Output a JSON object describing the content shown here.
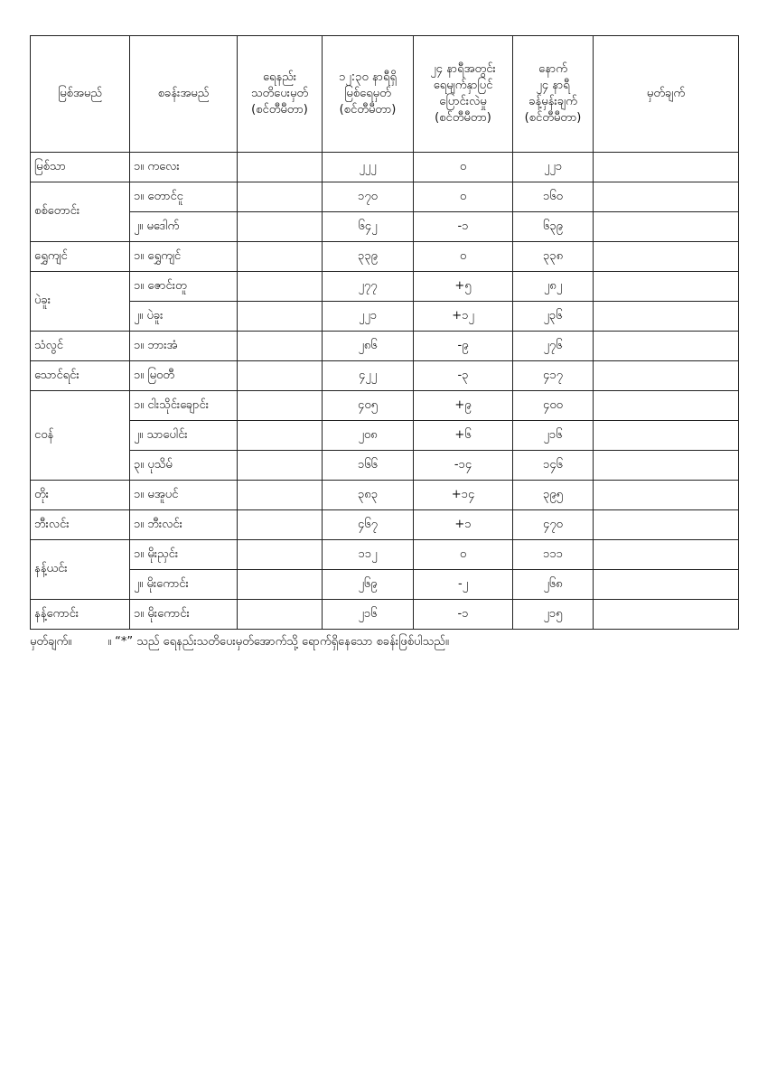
{
  "headers": [
    [
      "မြစ်အမည်"
    ],
    [
      "စခန်းအမည်"
    ],
    [
      "ရေနည်း",
      "သတိပေးမှတ်",
      "(စင်တီမီတာ)"
    ],
    [
      "၁၂:၃၀ နာရီရှိ",
      "မြစ်ရေမှတ်",
      "(စင်တီမီတာ)"
    ],
    [
      "၂၄ နာရီအတွင်း",
      "ရေမျက်နှာပြင်",
      "ပြောင်းလဲမှု",
      "(စင်တီမီတာ)"
    ],
    [
      "နောက်",
      "၂၄ နာရီ",
      "ခန့်မှန်းချက်",
      "(စင်တီမီတာ)"
    ],
    [
      "မှတ်ချက်"
    ]
  ],
  "rivers": [
    {
      "river": "မြစ်သာ",
      "stations": [
        {
          "name": "၁။ ကလေး",
          "warning": "",
          "level": "၂၂၂",
          "change": "၀",
          "forecast": "၂၂၁",
          "remark": ""
        }
      ]
    },
    {
      "river": "စစ်တောင်း",
      "stations": [
        {
          "name": "၁။ တောင်ငူ",
          "warning": "",
          "level": "၁၇၀",
          "change": "၀",
          "forecast": "၁၆၀",
          "remark": ""
        },
        {
          "name": "၂။ မဒေါက်",
          "warning": "",
          "level": "၆၄၂",
          "change": "-၁",
          "forecast": "၆၃၉",
          "remark": ""
        }
      ]
    },
    {
      "river": "ရွှေကျင်",
      "stations": [
        {
          "name": "၁။ ရွှေကျင်",
          "warning": "",
          "level": "၃၃၉",
          "change": "၀",
          "forecast": "၃၃၈",
          "remark": ""
        }
      ]
    },
    {
      "river": "ပဲခူး",
      "stations": [
        {
          "name": "၁။ ဇောင်းတူ",
          "warning": "",
          "level": "၂၇၇",
          "change": "+၅",
          "forecast": "၂၈၂",
          "remark": ""
        },
        {
          "name": "၂။ ပဲခူး",
          "warning": "",
          "level": "၂၂၁",
          "change": "+၁၂",
          "forecast": "၂၃၆",
          "remark": ""
        }
      ]
    },
    {
      "river": "သံလွင်",
      "stations": [
        {
          "name": "၁။ ဘားအံ",
          "warning": "",
          "level": "၂၈၆",
          "change": "-၉",
          "forecast": "၂၇၆",
          "remark": ""
        }
      ]
    },
    {
      "river": "သောင်ရင်း",
      "stations": [
        {
          "name": "၁။ မြဝတီ",
          "warning": "",
          "level": "၄၂၂",
          "change": "-၃",
          "forecast": "၄၁၇",
          "remark": ""
        }
      ]
    },
    {
      "river": "ငဝန်",
      "stations": [
        {
          "name": "၁။ ငါးသိုင်းချောင်း",
          "warning": "",
          "level": "၄၀၅",
          "change": "+၉",
          "forecast": "၄၀၀",
          "remark": ""
        },
        {
          "name": "၂။ သာပေါင်း",
          "warning": "",
          "level": "၂၀၈",
          "change": "+၆",
          "forecast": "၂၁၆",
          "remark": ""
        },
        {
          "name": "၃။ ပုသိမ်",
          "warning": "",
          "level": "၁၆၆",
          "change": "-၁၄",
          "forecast": "၁၄၆",
          "remark": ""
        }
      ]
    },
    {
      "river": "တိုး",
      "stations": [
        {
          "name": "၁။ မအူပင်",
          "warning": "",
          "level": "၃၈၃",
          "change": "+၁၄",
          "forecast": "၃၉၅",
          "remark": ""
        }
      ]
    },
    {
      "river": "ဘီးလင်း",
      "stations": [
        {
          "name": "၁။ ဘီးလင်း",
          "warning": "",
          "level": "၄၆၇",
          "change": "+၁",
          "forecast": "၄၇၀",
          "remark": ""
        }
      ]
    },
    {
      "river": "နန့်ယင်း",
      "stations": [
        {
          "name": "၁။ မိုးညှင်း",
          "warning": "",
          "level": "၁၁၂",
          "change": "၀",
          "forecast": "၁၁၁",
          "remark": ""
        },
        {
          "name": "၂။ မိုးကောင်း",
          "warning": "",
          "level": "၂၆၉",
          "change": "-၂",
          "forecast": "၂၆၈",
          "remark": ""
        }
      ]
    },
    {
      "river": "နန့်ကောင်း",
      "stations": [
        {
          "name": "၁။ မိုးကောင်း",
          "warning": "",
          "level": "၂၁၆",
          "change": "-၁",
          "forecast": "၂၁၅",
          "remark": ""
        }
      ]
    }
  ],
  "note": {
    "label": "မှတ်ချက်။",
    "text": "။ “*” သည် ရေနည်းသတိပေးမှတ်အောက်သို့ ရောက်ရှိနေသော စခန်းဖြစ်ပါသည်။"
  }
}
